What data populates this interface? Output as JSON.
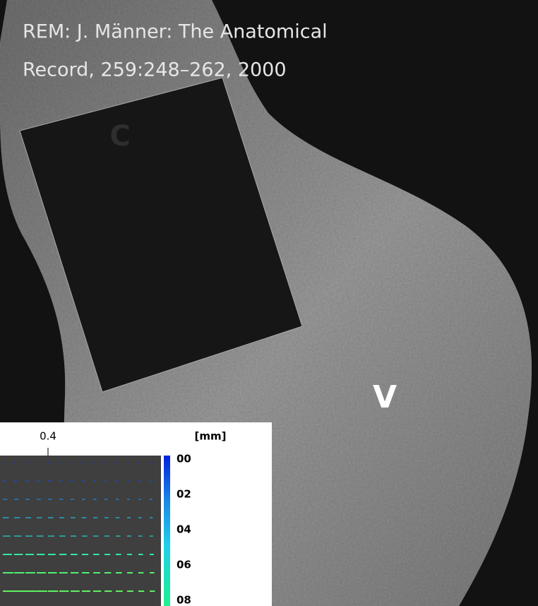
{
  "caption": {
    "line1": "REM: J. Männer: The Anatomical",
    "line2": "Record, 259:248–262, 2000"
  },
  "labels": {
    "c": "C",
    "v": "V"
  },
  "inset": {
    "x_tick": "0.4",
    "unit": "[mm]",
    "colorbar_labels": [
      "00",
      "02",
      "04",
      "06",
      "08"
    ]
  }
}
